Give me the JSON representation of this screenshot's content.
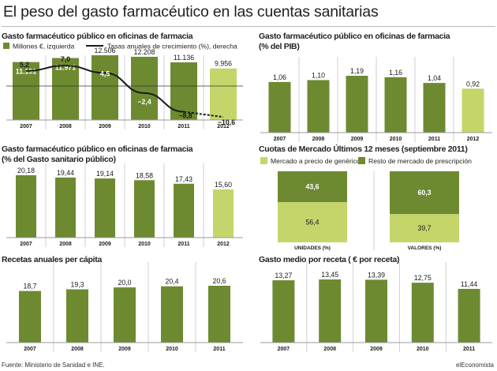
{
  "title": "El peso del gasto farmacéutico en las cuentas sanitarias",
  "source": "Fuente: Ministerio de Sanidad e INE.",
  "brand": "elEconomista",
  "colors": {
    "dark": "#6d8a31",
    "light": "#c5d56a",
    "line": "#1a1a1a"
  },
  "chart_data": [
    {
      "id": "chart1",
      "type": "bar",
      "title": "Gasto farmacéutico público en oficinas de farmacia",
      "categories": [
        "2007",
        "2008",
        "2009",
        "2010",
        "2011",
        "2012"
      ],
      "legend": {
        "bar": "Millones €, izquierda",
        "line": "Tasas anuales de crecimiento (%), derecha"
      },
      "series": [
        {
          "name": "Millones €, izquierda",
          "type": "bar",
          "values": [
            11191,
            11971,
            12506,
            12208,
            11136,
            9956
          ],
          "labels": [
            "11.191",
            "11.971",
            "12.506",
            "12.208",
            "11.136",
            "9.956"
          ]
        },
        {
          "name": "Tasas anuales de crecimiento (%), derecha",
          "type": "line",
          "values": [
            5.2,
            7.0,
            4.5,
            -2.4,
            -8.8,
            -10.6
          ],
          "labels": [
            "5,2",
            "7,0",
            "4,5",
            "−2,4",
            "−8,8",
            "−10,6"
          ]
        }
      ],
      "highlight_last": true
    },
    {
      "id": "chart2",
      "type": "bar",
      "title": "Gasto farmacéutico público en oficinas de farmacia",
      "subtitle": "(% del PIB)",
      "categories": [
        "2007",
        "2008",
        "2009",
        "2010",
        "2011",
        "2012"
      ],
      "values": [
        1.06,
        1.1,
        1.19,
        1.16,
        1.04,
        0.92
      ],
      "labels": [
        "1,06",
        "1,10",
        "1,19",
        "1,16",
        "1,04",
        "0,92"
      ],
      "highlight_last": true
    },
    {
      "id": "chart3",
      "type": "bar",
      "title": "Gasto farmacéutico público en oficinas de farmacia",
      "subtitle": "(% del Gasto sanitario público)",
      "categories": [
        "2007",
        "2008",
        "2009",
        "2010",
        "2011",
        "2012"
      ],
      "values": [
        20.18,
        19.44,
        19.14,
        18.58,
        17.43,
        15.6
      ],
      "labels": [
        "20,18",
        "19,44",
        "19,14",
        "18,58",
        "17,43",
        "15,60"
      ],
      "highlight_last": true
    },
    {
      "id": "chart4",
      "type": "bar",
      "stacked": true,
      "title": "Cuotas de Mercado Últimos 12 meses (septiembre 2011)",
      "categories": [
        "UNIDADES (%)",
        "VALORES (%)"
      ],
      "series": [
        {
          "name": "Mercado a precio de genérico",
          "values": [
            56.4,
            39.7
          ],
          "labels": [
            "56,4",
            "39,7"
          ]
        },
        {
          "name": "Resto de mercado de prescripción",
          "values": [
            43.6,
            60.3
          ],
          "labels": [
            "43,6",
            "60,3"
          ]
        }
      ]
    },
    {
      "id": "chart5",
      "type": "bar",
      "title": "Recetas anuales per cápita",
      "categories": [
        "2007",
        "2008",
        "2009",
        "2010",
        "2011"
      ],
      "values": [
        18.7,
        19.3,
        20.0,
        20.4,
        20.6
      ],
      "labels": [
        "18,7",
        "19,3",
        "20,0",
        "20,4",
        "20,6"
      ]
    },
    {
      "id": "chart6",
      "type": "bar",
      "title": "Gasto medio por receta ( € por receta)",
      "categories": [
        "2007",
        "2008",
        "2009",
        "2010",
        "2011"
      ],
      "values": [
        13.27,
        13.45,
        13.39,
        12.75,
        11.44
      ],
      "labels": [
        "13,27",
        "13,45",
        "13,39",
        "12,75",
        "11,44"
      ]
    }
  ]
}
